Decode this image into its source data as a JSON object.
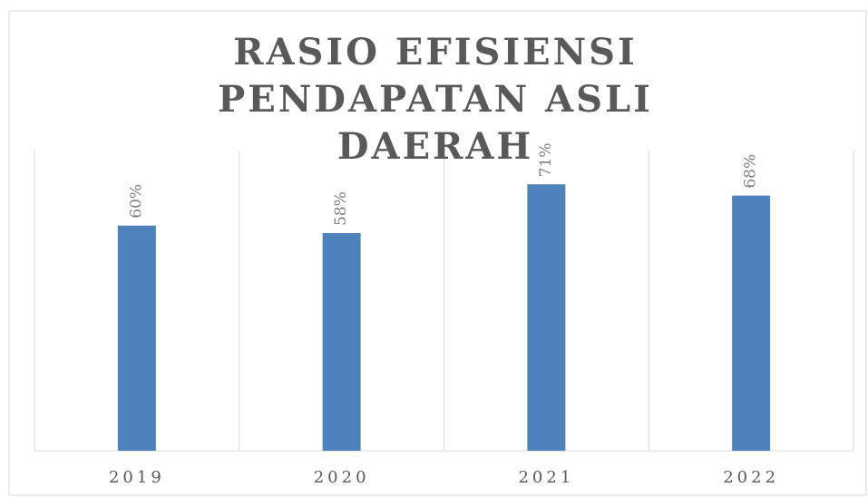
{
  "chart_data": {
    "type": "bar",
    "title": "RASIO EFISIENSI PENDAPATAN ASLI DAERAH",
    "categories": [
      "2019",
      "2020",
      "2021",
      "2022"
    ],
    "values": [
      60,
      58,
      71,
      68
    ],
    "value_labels": [
      "60%",
      "58%",
      "71%",
      "68%"
    ],
    "color": "#4f81bd",
    "ylim": [
      0,
      80
    ]
  }
}
